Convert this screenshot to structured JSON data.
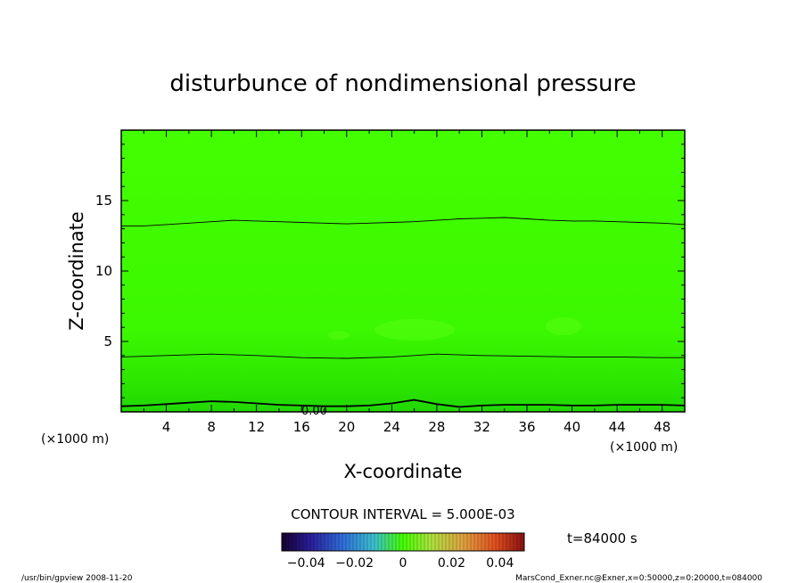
{
  "chart_data": {
    "type": "heatmap",
    "title": "disturbunce of nondimensional pressure",
    "xlabel": "X-coordinate",
    "ylabel": "Z-coordinate",
    "x_unit_left": "(×1000 m)",
    "x_unit_right": "(×1000 m)",
    "xlim": [
      0,
      50
    ],
    "ylim": [
      0,
      20
    ],
    "x_ticks": [
      4,
      8,
      12,
      16,
      20,
      24,
      28,
      32,
      36,
      40,
      44,
      48
    ],
    "y_ticks": [
      5,
      10,
      15
    ],
    "contour_interval_text": "CONTOUR INTERVAL = 5.000E-03",
    "time_text": "t=84000 s",
    "contour_label": "0.00",
    "colorbar": {
      "tick_labels": [
        "−0.04",
        "−0.02",
        "0",
        "0.02",
        "0.04"
      ],
      "tick_values": [
        -0.04,
        -0.02,
        0,
        0.02,
        0.04
      ],
      "range": [
        -0.05,
        0.05
      ]
    },
    "contours": [
      {
        "x": [
          0,
          2,
          4,
          6,
          8,
          10,
          12,
          14,
          16,
          18,
          20,
          22,
          24,
          26,
          28,
          30,
          32,
          34,
          36,
          38,
          40,
          42,
          44,
          46,
          48,
          50
        ],
        "z": [
          0.4,
          0.45,
          0.55,
          0.65,
          0.75,
          0.7,
          0.6,
          0.5,
          0.45,
          0.4,
          0.4,
          0.45,
          0.6,
          0.85,
          0.55,
          0.35,
          0.45,
          0.5,
          0.5,
          0.5,
          0.45,
          0.45,
          0.5,
          0.5,
          0.5,
          0.45
        ]
      },
      {
        "x": [
          0,
          4,
          8,
          12,
          16,
          20,
          24,
          28,
          32,
          36,
          40,
          44,
          48,
          50
        ],
        "z": [
          3.9,
          4.0,
          4.1,
          4.0,
          3.85,
          3.8,
          3.9,
          4.1,
          4.0,
          3.95,
          3.9,
          3.9,
          3.85,
          3.85
        ]
      },
      {
        "x": [
          0,
          2,
          4,
          6,
          8,
          10,
          12,
          14,
          16,
          18,
          20,
          22,
          24,
          26,
          28,
          30,
          32,
          34,
          36,
          38,
          40,
          42,
          44,
          46,
          48,
          50
        ],
        "z": [
          13.2,
          13.2,
          13.3,
          13.4,
          13.5,
          13.6,
          13.55,
          13.5,
          13.45,
          13.4,
          13.35,
          13.4,
          13.45,
          13.5,
          13.6,
          13.7,
          13.75,
          13.8,
          13.7,
          13.6,
          13.55,
          13.55,
          13.5,
          13.45,
          13.4,
          13.3
        ]
      }
    ],
    "grid": false
  },
  "footer": {
    "left": "/usr/bin/gpview   2008-11-20",
    "right": "MarsCond_Exner.nc@Exner,x=0:50000,z=0:20000,t=084000"
  },
  "colors": {
    "field_top": "#44ff00",
    "field_bottom": "#22dd00",
    "frame": "#000000"
  }
}
